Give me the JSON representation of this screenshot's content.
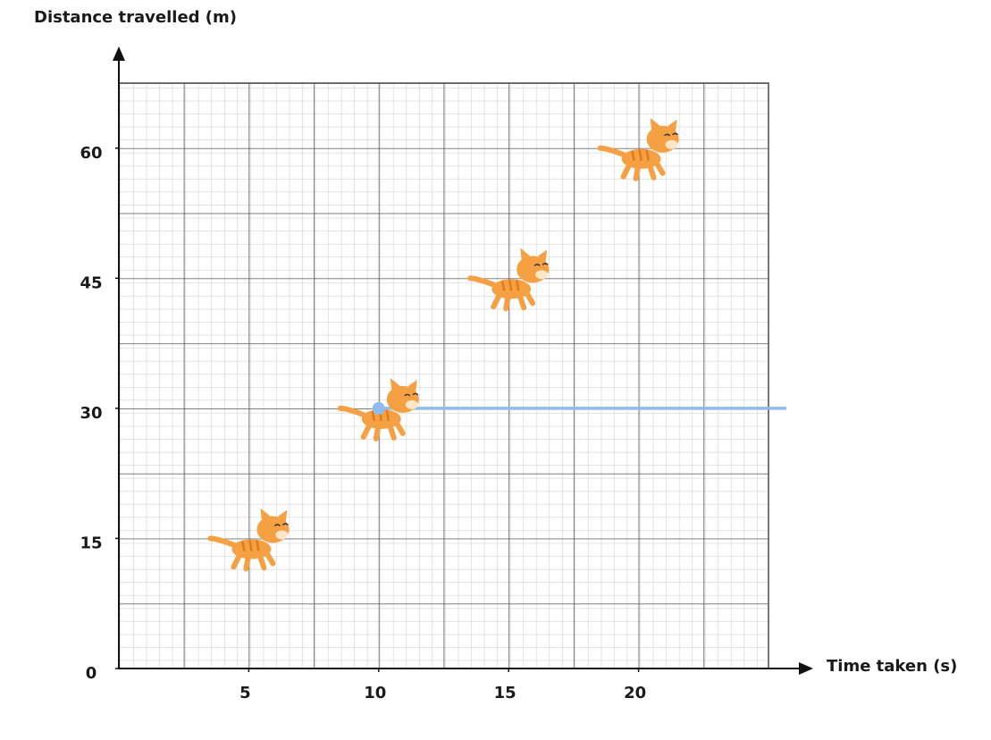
{
  "chart_data": {
    "type": "scatter",
    "y_label": "Distance travelled (m)",
    "x_label": "Time taken (s)",
    "x": [
      5,
      10,
      15,
      20
    ],
    "values": [
      15,
      30,
      45,
      60
    ],
    "color": "#f5a043",
    "xlim": [
      0,
      25
    ],
    "ylim": [
      0,
      67.5
    ],
    "xticks": [
      5,
      10,
      15,
      20
    ],
    "yticks": [
      0,
      15,
      30,
      45,
      60
    ],
    "guide": {
      "x": 10,
      "y": 30,
      "color": "#8fbcef"
    }
  }
}
